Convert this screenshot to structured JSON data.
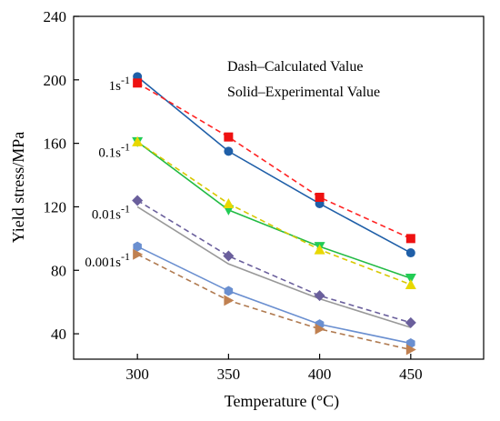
{
  "chart_data": {
    "type": "line",
    "xlabel": "Temperature (°C)",
    "ylabel": "Yield stress/MPa",
    "xlim": [
      265,
      490
    ],
    "ylim": [
      24,
      240
    ],
    "xticks": [
      300,
      350,
      400,
      450
    ],
    "yticks": [
      40,
      80,
      120,
      160,
      200,
      240
    ],
    "x": [
      300,
      350,
      400,
      450
    ],
    "annotations": [
      "Dash–Calculated Value",
      "Solid–Experimental Value"
    ],
    "rate_labels": [
      {
        "base": "1s",
        "exp": "-1",
        "y": 197
      },
      {
        "base": "0.1s",
        "exp": "-1",
        "y": 155
      },
      {
        "base": "0.01s",
        "exp": "-1",
        "y": 116
      },
      {
        "base": "0.001s",
        "exp": "-1",
        "y": 86
      }
    ],
    "series": [
      {
        "kind": "experimental",
        "line_color": "#1f5fa8",
        "marker": "circle",
        "marker_color": "#1f5fa8",
        "values": [
          202,
          155,
          122,
          91
        ]
      },
      {
        "kind": "calculated",
        "line_color": "#ff2222",
        "marker": "square",
        "marker_color": "#ee1111",
        "values": [
          198,
          164,
          126,
          100
        ]
      },
      {
        "kind": "experimental",
        "line_color": "#22bb44",
        "marker": "triangle-down",
        "marker_color": "#22cc55",
        "values": [
          161,
          118,
          95,
          75
        ]
      },
      {
        "kind": "calculated",
        "line_color": "#d8c800",
        "marker": "triangle-up",
        "marker_color": "#e8d800",
        "values": [
          161,
          122,
          93,
          71
        ]
      },
      {
        "kind": "experimental",
        "line_color": "#999999",
        "marker": "none",
        "marker_color": "#999999",
        "values": [
          120,
          84,
          62,
          44
        ]
      },
      {
        "kind": "calculated",
        "line_color": "#6a5f9c",
        "marker": "diamond",
        "marker_color": "#6a5f9c",
        "values": [
          124,
          89,
          64,
          47
        ]
      },
      {
        "kind": "experimental",
        "line_color": "#6a8fd0",
        "marker": "hexagon",
        "marker_color": "#6a8fd0",
        "values": [
          95,
          67,
          46,
          34
        ]
      },
      {
        "kind": "calculated",
        "line_color": "#b07a50",
        "marker": "triangle-right",
        "marker_color": "#c08050",
        "values": [
          90,
          61,
          43,
          30
        ]
      }
    ]
  }
}
